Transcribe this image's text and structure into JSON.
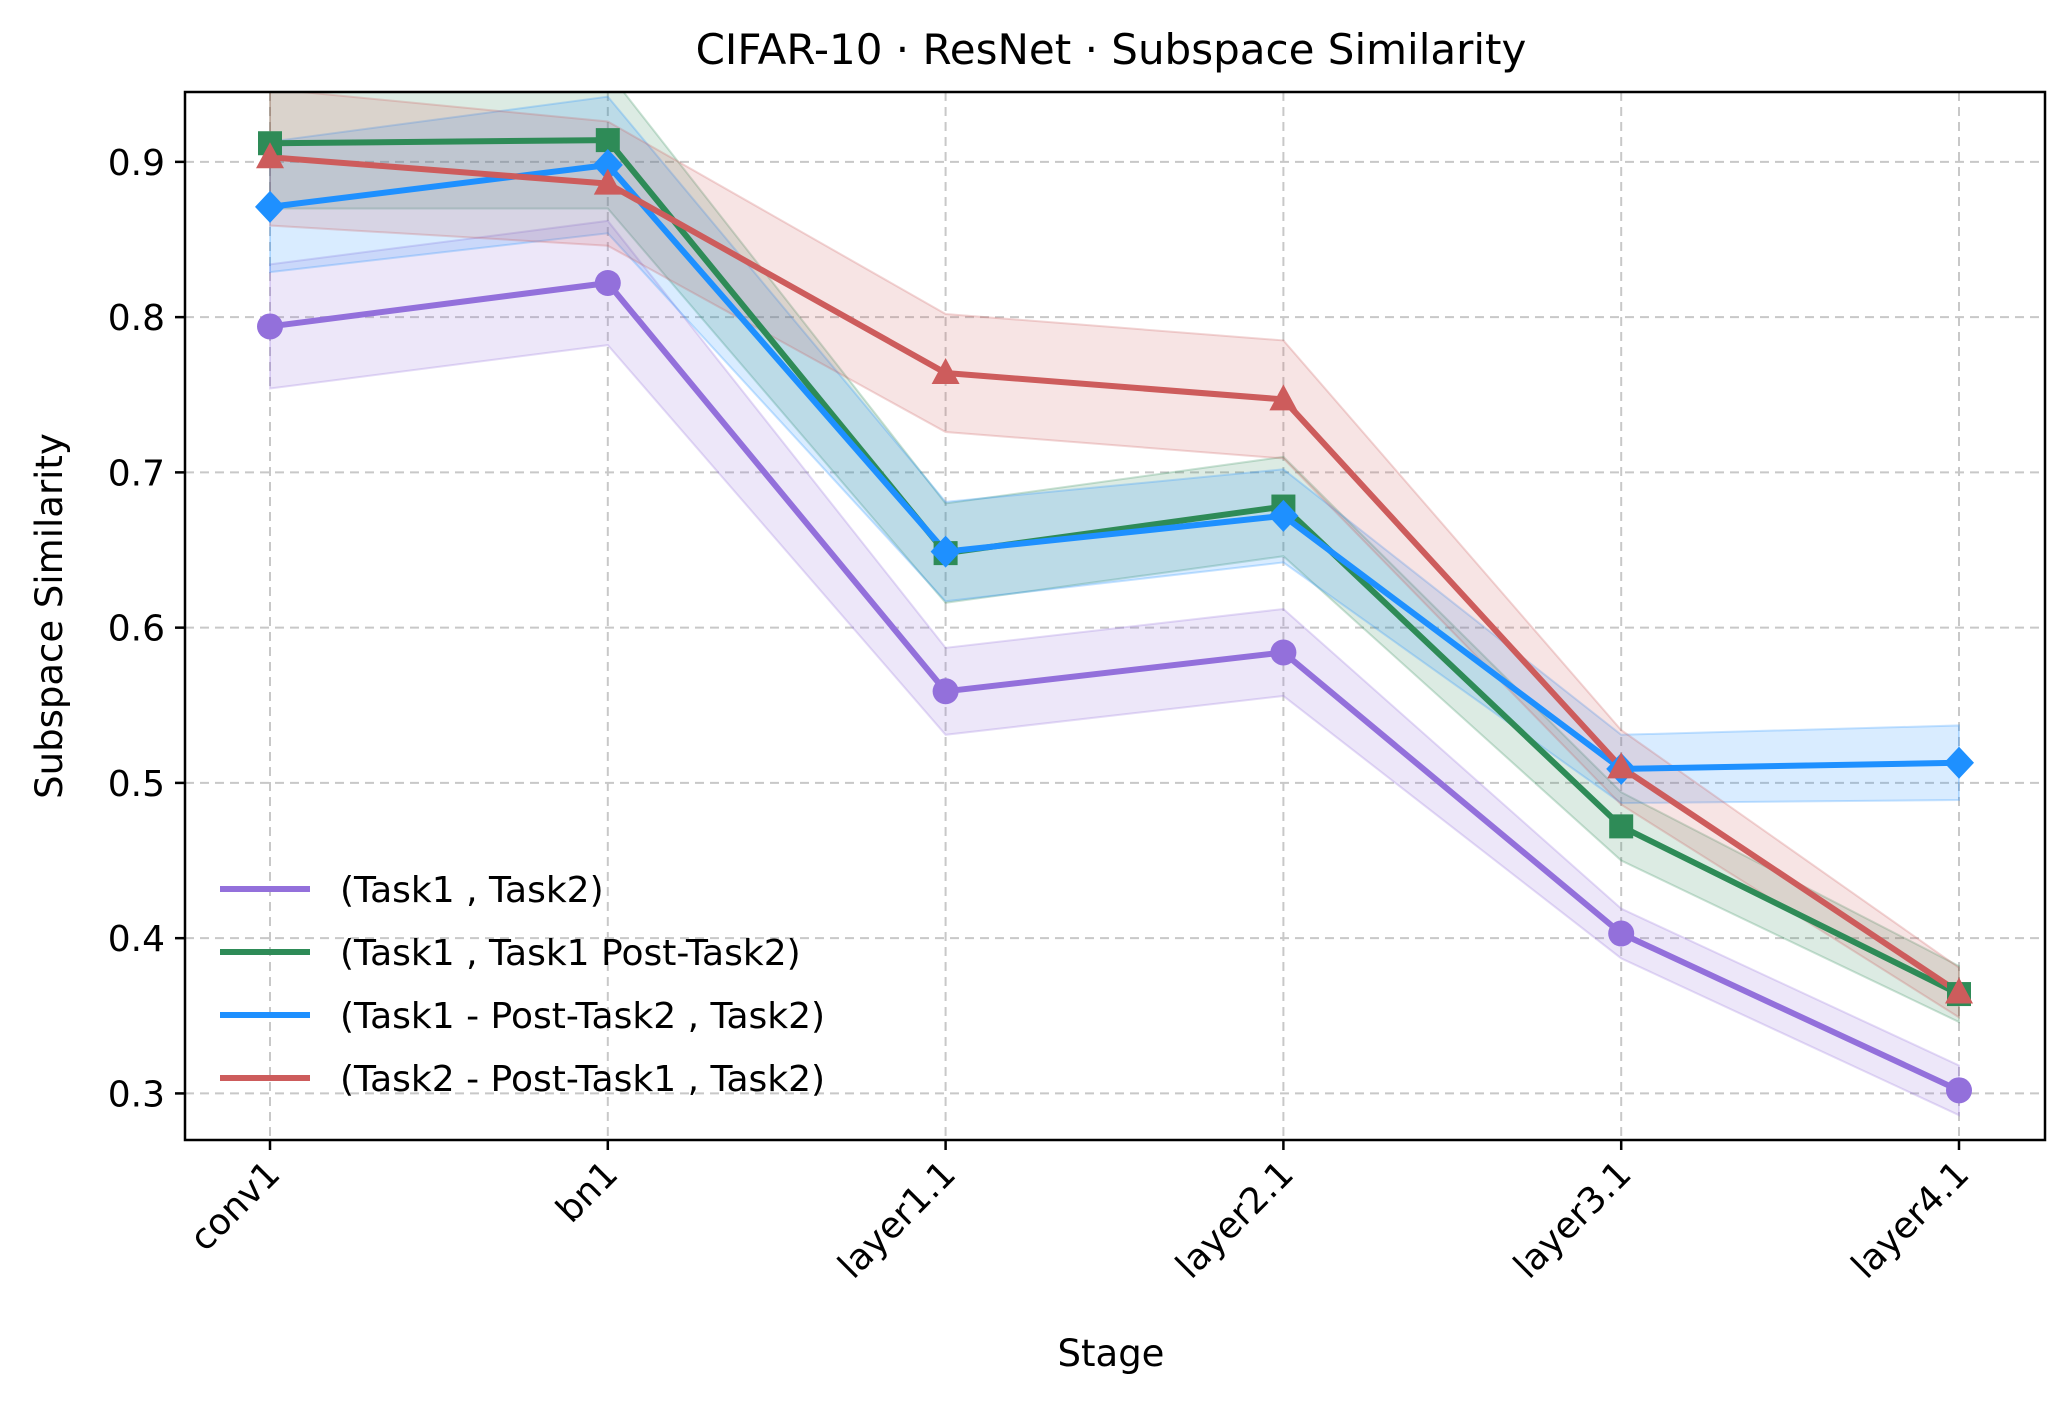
{
  "chart_data": {
    "type": "line",
    "title": "CIFAR-10 · ResNet · Subspace Similarity",
    "xlabel": "Stage",
    "ylabel": "Subspace Similarity",
    "categories": [
      "conv1",
      "bn1",
      "layer1.1",
      "layer2.1",
      "layer3.1",
      "layer4.1"
    ],
    "ylim": [
      0.27,
      0.945
    ],
    "yticks": [
      "0.3",
      "0.4",
      "0.5",
      "0.6",
      "0.7",
      "0.8",
      "0.9"
    ],
    "grid": true,
    "legend_position": "lower-left",
    "series": [
      {
        "name": "(Task1 , Task2)",
        "color": "#9370db",
        "marker": "circle",
        "values": [
          0.794,
          0.822,
          0.559,
          0.584,
          0.403,
          0.302
        ],
        "lower": [
          0.754,
          0.782,
          0.531,
          0.556,
          0.387,
          0.286
        ],
        "upper": [
          0.834,
          0.862,
          0.587,
          0.612,
          0.419,
          0.318
        ]
      },
      {
        "name": "(Task1 , Task1 Post-Task2)",
        "color": "#2e8b57",
        "marker": "square",
        "values": [
          0.912,
          0.914,
          0.648,
          0.678,
          0.472,
          0.364
        ],
        "lower": [
          0.87,
          0.87,
          0.616,
          0.646,
          0.45,
          0.346
        ],
        "upper": [
          0.954,
          0.958,
          0.68,
          0.71,
          0.494,
          0.382
        ]
      },
      {
        "name": "(Task1 - Post-Task2 , Task2)",
        "color": "#1e90ff",
        "marker": "diamond",
        "values": [
          0.871,
          0.898,
          0.649,
          0.672,
          0.509,
          0.513
        ],
        "lower": [
          0.829,
          0.854,
          0.617,
          0.642,
          0.487,
          0.489
        ],
        "upper": [
          0.913,
          0.942,
          0.681,
          0.702,
          0.531,
          0.537
        ]
      },
      {
        "name": "(Task2 - Post-Task1 , Task2)",
        "color": "#cd5c5c",
        "marker": "triangle",
        "values": [
          0.903,
          0.886,
          0.764,
          0.747,
          0.51,
          0.365
        ],
        "lower": [
          0.859,
          0.846,
          0.726,
          0.709,
          0.486,
          0.349
        ],
        "upper": [
          0.947,
          0.926,
          0.802,
          0.785,
          0.534,
          0.381
        ]
      }
    ]
  }
}
